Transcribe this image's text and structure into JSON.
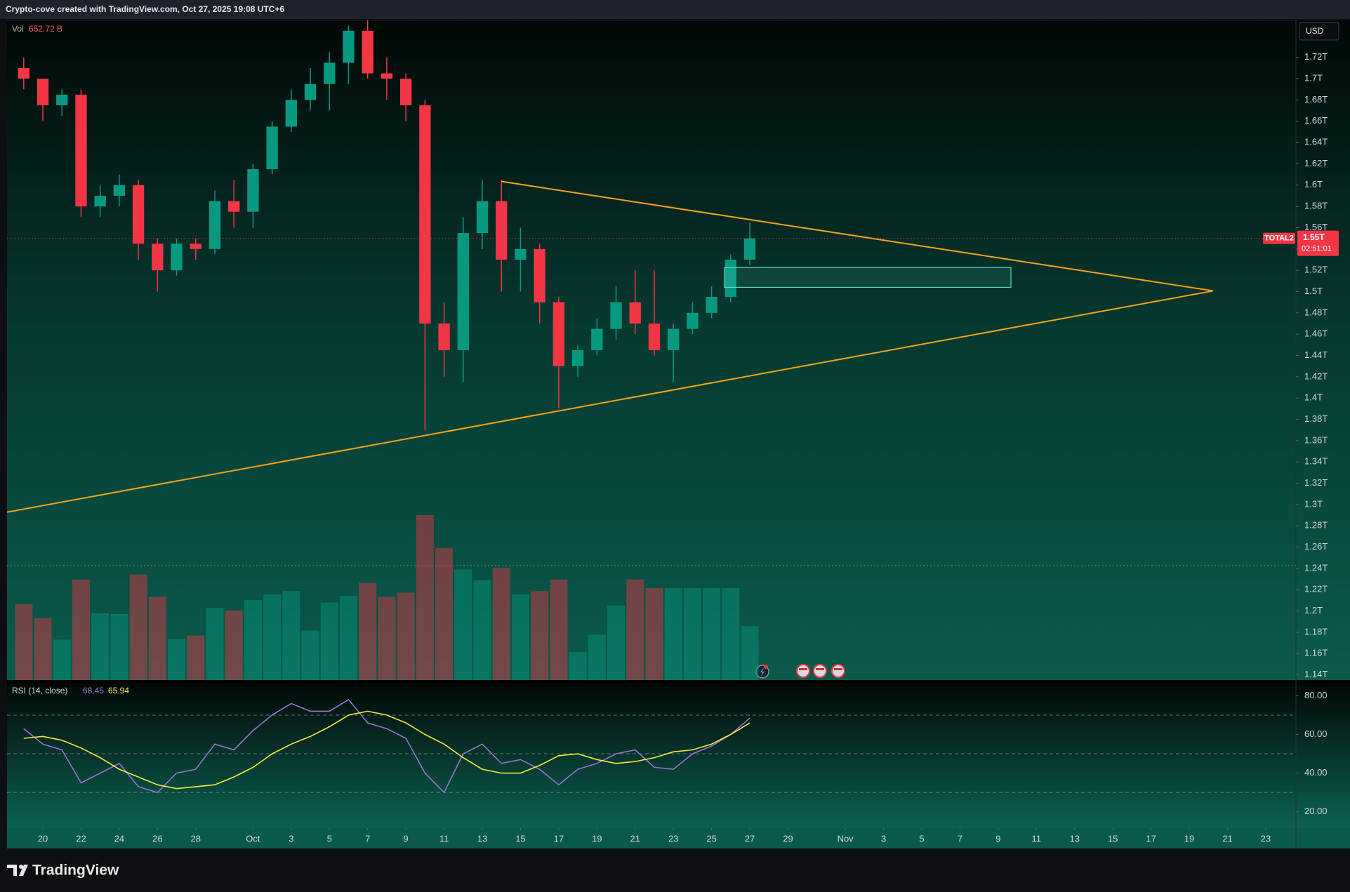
{
  "chart_data": {
    "type": "candlestick",
    "title": "Crypto-cove created with TradingView.com, Oct 27, 2025 19:08 UTC+6",
    "currency": "USD",
    "x": [
      "2025-09-19",
      "2025-09-20",
      "2025-09-21",
      "2025-09-22",
      "2025-09-23",
      "2025-09-24",
      "2025-09-25",
      "2025-09-26",
      "2025-09-27",
      "2025-09-28",
      "2025-09-29",
      "2025-09-30",
      "2025-10-01",
      "2025-10-02",
      "2025-10-03",
      "2025-10-04",
      "2025-10-05",
      "2025-10-06",
      "2025-10-07",
      "2025-10-08",
      "2025-10-09",
      "2025-10-10",
      "2025-10-11",
      "2025-10-12",
      "2025-10-13",
      "2025-10-14",
      "2025-10-15",
      "2025-10-16",
      "2025-10-17",
      "2025-10-18",
      "2025-10-19",
      "2025-10-20",
      "2025-10-21",
      "2025-10-22",
      "2025-10-23",
      "2025-10-24",
      "2025-10-25",
      "2025-10-26",
      "2025-10-27"
    ],
    "open": [
      1.71,
      1.7,
      1.675,
      1.685,
      1.58,
      1.59,
      1.6,
      1.545,
      1.52,
      1.545,
      1.54,
      1.585,
      1.575,
      1.615,
      1.655,
      1.68,
      1.695,
      1.715,
      1.745,
      1.705,
      1.7,
      1.675,
      1.47,
      1.445,
      1.555,
      1.585,
      1.53,
      1.54,
      1.49,
      1.43,
      1.445,
      1.465,
      1.49,
      1.47,
      1.445,
      1.465,
      1.48,
      1.495,
      1.53
    ],
    "high": [
      1.72,
      1.7,
      1.69,
      1.69,
      1.6,
      1.61,
      1.605,
      1.55,
      1.55,
      1.55,
      1.595,
      1.605,
      1.62,
      1.66,
      1.69,
      1.71,
      1.725,
      1.75,
      1.755,
      1.72,
      1.705,
      1.68,
      1.49,
      1.57,
      1.605,
      1.605,
      1.56,
      1.545,
      1.495,
      1.45,
      1.475,
      1.505,
      1.52,
      1.52,
      1.47,
      1.49,
      1.505,
      1.535,
      1.565
    ],
    "low": [
      1.69,
      1.66,
      1.665,
      1.57,
      1.57,
      1.58,
      1.53,
      1.5,
      1.515,
      1.53,
      1.535,
      1.56,
      1.56,
      1.61,
      1.65,
      1.67,
      1.67,
      1.695,
      1.7,
      1.68,
      1.66,
      1.37,
      1.42,
      1.415,
      1.54,
      1.5,
      1.5,
      1.47,
      1.39,
      1.42,
      1.44,
      1.455,
      1.46,
      1.44,
      1.415,
      1.46,
      1.475,
      1.49,
      1.525
    ],
    "close": [
      1.7,
      1.675,
      1.685,
      1.58,
      1.59,
      1.6,
      1.545,
      1.52,
      1.545,
      1.54,
      1.585,
      1.575,
      1.615,
      1.655,
      1.68,
      1.695,
      1.715,
      1.745,
      1.705,
      1.7,
      1.675,
      1.47,
      1.445,
      1.555,
      1.585,
      1.53,
      1.54,
      1.49,
      1.43,
      1.445,
      1.465,
      1.49,
      1.47,
      1.445,
      1.465,
      1.48,
      1.495,
      1.53,
      1.55
    ],
    "up_color": "#089981",
    "down_color": "#f23645",
    "xlim": [
      "2025-09-18T03:00",
      "2025-11-24T14:00"
    ],
    "xticks": [
      {
        "value": "2025-09-20",
        "label": "20"
      },
      {
        "value": "2025-09-22",
        "label": "22"
      },
      {
        "value": "2025-09-24",
        "label": "24"
      },
      {
        "value": "2025-09-26",
        "label": "26"
      },
      {
        "value": "2025-09-28",
        "label": "28"
      },
      {
        "value": "2025-10-01",
        "label": "Oct"
      },
      {
        "value": "2025-10-03",
        "label": "3"
      },
      {
        "value": "2025-10-05",
        "label": "5"
      },
      {
        "value": "2025-10-07",
        "label": "7"
      },
      {
        "value": "2025-10-09",
        "label": "9"
      },
      {
        "value": "2025-10-11",
        "label": "11"
      },
      {
        "value": "2025-10-13",
        "label": "13"
      },
      {
        "value": "2025-10-15",
        "label": "15"
      },
      {
        "value": "2025-10-17",
        "label": "17"
      },
      {
        "value": "2025-10-19",
        "label": "19"
      },
      {
        "value": "2025-10-21",
        "label": "21"
      },
      {
        "value": "2025-10-23",
        "label": "23"
      },
      {
        "value": "2025-10-25",
        "label": "25"
      },
      {
        "value": "2025-10-27",
        "label": "27"
      },
      {
        "value": "2025-10-29",
        "label": "29"
      },
      {
        "value": "2025-11-01",
        "label": "Nov"
      },
      {
        "value": "2025-11-03",
        "label": "3"
      },
      {
        "value": "2025-11-05",
        "label": "5"
      },
      {
        "value": "2025-11-07",
        "label": "7"
      },
      {
        "value": "2025-11-09",
        "label": "9"
      },
      {
        "value": "2025-11-11",
        "label": "11"
      },
      {
        "value": "2025-11-13",
        "label": "13"
      },
      {
        "value": "2025-11-15",
        "label": "15"
      },
      {
        "value": "2025-11-17",
        "label": "17"
      },
      {
        "value": "2025-11-19",
        "label": "19"
      },
      {
        "value": "2025-11-21",
        "label": "21"
      },
      {
        "value": "2025-11-23",
        "label": "23"
      }
    ],
    "ylim": [
      1.1351,
      1.7548
    ],
    "yticks": [
      {
        "value": 1.14,
        "label": "1.14T"
      },
      {
        "value": 1.16,
        "label": "1.16T"
      },
      {
        "value": 1.18,
        "label": "1.18T"
      },
      {
        "value": 1.2,
        "label": "1.2T"
      },
      {
        "value": 1.22,
        "label": "1.22T"
      },
      {
        "value": 1.24,
        "label": "1.24T"
      },
      {
        "value": 1.26,
        "label": "1.26T"
      },
      {
        "value": 1.28,
        "label": "1.28T"
      },
      {
        "value": 1.3,
        "label": "1.3T"
      },
      {
        "value": 1.32,
        "label": "1.32T"
      },
      {
        "value": 1.34,
        "label": "1.34T"
      },
      {
        "value": 1.36,
        "label": "1.36T"
      },
      {
        "value": 1.38,
        "label": "1.38T"
      },
      {
        "value": 1.4,
        "label": "1.4T"
      },
      {
        "value": 1.42,
        "label": "1.42T"
      },
      {
        "value": 1.44,
        "label": "1.44T"
      },
      {
        "value": 1.46,
        "label": "1.46T"
      },
      {
        "value": 1.48,
        "label": "1.48T"
      },
      {
        "value": 1.5,
        "label": "1.5T"
      },
      {
        "value": 1.52,
        "label": "1.52T"
      },
      {
        "value": 1.54,
        "label": "1.54T"
      },
      {
        "value": 1.56,
        "label": "1.56T"
      },
      {
        "value": 1.58,
        "label": "1.58T"
      },
      {
        "value": 1.6,
        "label": "1.6T"
      },
      {
        "value": 1.62,
        "label": "1.62T"
      },
      {
        "value": 1.64,
        "label": "1.64T"
      },
      {
        "value": 1.66,
        "label": "1.66T"
      },
      {
        "value": 1.68,
        "label": "1.68T"
      },
      {
        "value": 1.7,
        "label": "1.7T"
      },
      {
        "value": 1.72,
        "label": "1.72T"
      }
    ],
    "last_price": {
      "symbol": "TOTAL2",
      "value": 1.55,
      "label": "1.55T",
      "countdown": "02:51:01",
      "color": "#f23645"
    },
    "trend_lines": [
      {
        "color": "#f7a21b",
        "x": [
          "2025-10-14T00:00",
          "2025-11-20T06:00"
        ],
        "y": [
          1.6035,
          1.5007
        ]
      },
      {
        "color": "#f7a21b",
        "x": [
          "2025-09-18T03:00",
          "2025-11-20T06:00"
        ],
        "y": [
          1.2928,
          1.5007
        ]
      }
    ],
    "zone": {
      "x": [
        "2025-10-25T16:00",
        "2025-11-09T16:00"
      ],
      "y": [
        1.504,
        1.5226
      ],
      "color": "#5fd6c4"
    },
    "volume": {
      "name": "Vol",
      "values": [
        920,
        750,
        490,
        1220,
        810,
        800,
        1280,
        1010,
        500,
        540,
        875,
        845,
        970,
        1040,
        1080,
        600,
        940,
        1020,
        1180,
        1010,
        1060,
        2000,
        1600,
        1340,
        1210,
        1360,
        1040,
        1080,
        1220,
        340,
        550,
        905,
        1220,
        1115,
        1115,
        1115,
        1115,
        1115,
        652.72
      ],
      "value_labels": [
        null,
        null,
        null,
        null,
        null,
        null,
        null,
        null,
        null,
        null,
        null,
        null,
        null,
        null,
        null,
        null,
        null,
        null,
        null,
        null,
        null,
        null,
        null,
        null,
        null,
        null,
        null,
        null,
        null,
        null,
        null,
        null,
        null,
        null,
        null,
        null,
        null,
        null,
        "652.72 B"
      ],
      "ylim": [
        0,
        8000
      ]
    },
    "rsi": {
      "title": "RSI (14, close)",
      "values": [
        63,
        55,
        52,
        35,
        40,
        45,
        33,
        30,
        40,
        42,
        55,
        52,
        62,
        70,
        76,
        72,
        72,
        78,
        66,
        63,
        58,
        40,
        30,
        50,
        55,
        45,
        47,
        42,
        34,
        42,
        45,
        50,
        52,
        43,
        42,
        50,
        54,
        60,
        68.45
      ],
      "color": "#9575cd",
      "ma_values": [
        58,
        59,
        57,
        53,
        48,
        42,
        38,
        34,
        32,
        33,
        34,
        38,
        43,
        50,
        55,
        59,
        64,
        70,
        72,
        70,
        66,
        60,
        55,
        48,
        42,
        40,
        40,
        44,
        49,
        50,
        47,
        45,
        46,
        48,
        51,
        52,
        55,
        60,
        65.94
      ],
      "ma_color": "#f3ea3d",
      "bands": [
        70,
        50,
        30
      ],
      "ylim": [
        11.56,
        86.67
      ],
      "yticks": [
        {
          "value": 80,
          "label": "80.00"
        },
        {
          "value": 60,
          "label": "60.00"
        },
        {
          "value": 40,
          "label": "40.00"
        },
        {
          "value": 20,
          "label": "20.00"
        }
      ]
    },
    "footer": "TradingView"
  }
}
